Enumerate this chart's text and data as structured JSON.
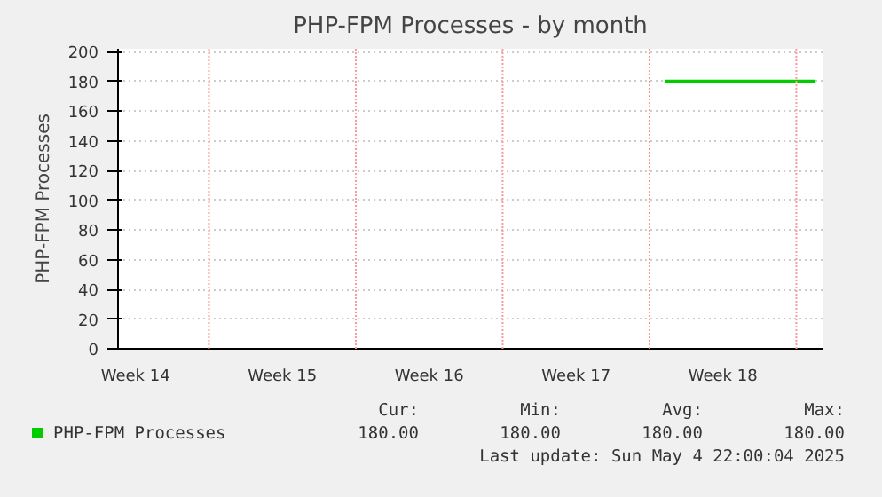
{
  "chart_data": {
    "type": "line",
    "title": "PHP-FPM Processes - by month",
    "ylabel": "PHP-FPM Processes",
    "x": [
      "2025-04-27T10:00",
      "2025-05-04T14:00"
    ],
    "series": [
      {
        "name": "PHP-FPM Processes",
        "color": "#00cc00",
        "values": [
          180,
          180
        ]
      }
    ],
    "xlim": [
      "2025-04-01T08:00",
      "2025-05-04T22:00"
    ],
    "ylim": [
      0,
      202
    ],
    "xticks": [
      {
        "value": "2025-04-02T04:00",
        "label": "Week 14"
      },
      {
        "value": "2025-04-09T04:00",
        "label": "Week 15"
      },
      {
        "value": "2025-04-16T04:00",
        "label": "Week 16"
      },
      {
        "value": "2025-04-23T04:00",
        "label": "Week 17"
      },
      {
        "value": "2025-04-30T04:00",
        "label": "Week 18"
      }
    ],
    "yticks": [
      0,
      20,
      40,
      60,
      80,
      100,
      120,
      140,
      160,
      180,
      200
    ],
    "ref_lines": [
      {
        "axis": "x",
        "value": "2025-04-05T16:00",
        "color": "#ff9999"
      },
      {
        "axis": "x",
        "value": "2025-04-12T16:00",
        "color": "#ff9999"
      },
      {
        "axis": "x",
        "value": "2025-04-19T16:00",
        "color": "#ff9999"
      },
      {
        "axis": "x",
        "value": "2025-04-26T16:00",
        "color": "#ff9999"
      },
      {
        "axis": "x",
        "value": "2025-05-03T16:00",
        "color": "#ff9999"
      }
    ],
    "grid": "y",
    "legend": "bottom",
    "line_style": "solid",
    "marker": "none",
    "annotations": [
      "Cur:",
      "Min:",
      "Avg:",
      "Max:",
      "180.00",
      "180.00",
      "180.00",
      "180.00",
      "Last update: Sun May  4 22:00:04 2025"
    ]
  }
}
